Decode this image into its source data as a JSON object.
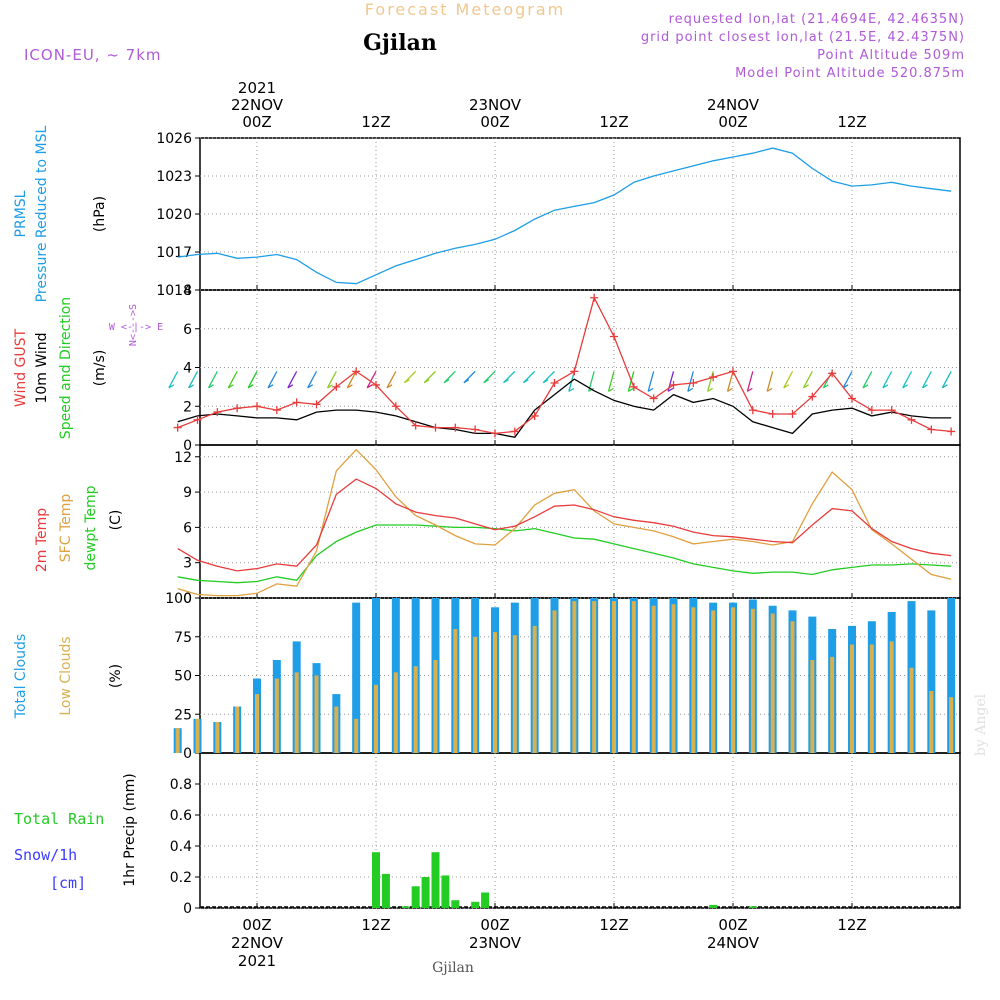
{
  "header": {
    "product": "Forecast Meteogram",
    "location": "Gjilan",
    "model": "ICON-EU, ~ 7km",
    "requested": "requested lon,lat (21.4694E, 42.4635N)",
    "grid_point": "grid point closest lon,lat (21.5E, 42.4375N)",
    "point_alt": "Point Altitude 509m",
    "model_alt": "Model Point Altitude 520.875m"
  },
  "footer_name": "Gjilan",
  "watermark": "by Angel",
  "top_axis": {
    "year": "2021",
    "dates": [
      "22NOV",
      "23NOV",
      "24NOV"
    ],
    "hours": [
      "00Z",
      "12Z",
      "00Z",
      "12Z",
      "00Z",
      "12Z"
    ]
  },
  "bottom_axis": {
    "year": "2021",
    "dates": [
      "22NOV",
      "23NOV",
      "24NOV"
    ],
    "hours": [
      "00Z",
      "12Z",
      "00Z",
      "12Z",
      "00Z",
      "12Z"
    ]
  },
  "panel_labels": {
    "pressure": {
      "l1": "PRMSL",
      "l2": "Pressure Reduced to MSL",
      "unit": "(hPa)"
    },
    "wind": {
      "gust": "Wind GUST",
      "wind10": "10m Wind",
      "dir": "Speed and Direction",
      "unit": "(m/s)",
      "compass_ns": "N<--->S",
      "compass_we": "W <-|-> E"
    },
    "temp": {
      "t2m": "2m Temp",
      "sfc": "SFC Temp",
      "dew": "dewpt Temp",
      "unit": "(C)"
    },
    "clouds": {
      "total": "Total Clouds",
      "low": "Low Clouds",
      "unit": "(%)"
    },
    "precip": {
      "rain": "Total   Rain",
      "snow": "Snow/1h",
      "snow_unit": "[cm]",
      "unit": "1hr Precip (mm)"
    }
  },
  "colors": {
    "pressure": "#1e9ee6",
    "gust": "#e83c3c",
    "wind": "#000000",
    "temp": "#e83c3c",
    "sfc": "#e0a040",
    "dew": "#22cc22",
    "total_cloud": "#1e9ee6",
    "low_cloud": "#d8b050",
    "rain": "#22cc22",
    "snow": "#3b3bff",
    "purple": "#b05ad8"
  },
  "chart_data": [
    {
      "type": "line",
      "title": "PRMSL Pressure Reduced to MSL",
      "ylabel": "(hPa)",
      "ylim": [
        1014,
        1026
      ],
      "yticks": [
        1014,
        1017,
        1020,
        1023,
        1026
      ],
      "x_hours": [
        -8,
        -6,
        -4,
        -2,
        0,
        2,
        4,
        6,
        8,
        10,
        12,
        14,
        16,
        18,
        20,
        22,
        24,
        26,
        28,
        30,
        32,
        34,
        36,
        38,
        40,
        42,
        44,
        46,
        48,
        50,
        52,
        54,
        56,
        58,
        60,
        62,
        64,
        66,
        68,
        70
      ],
      "series": [
        {
          "name": "PRMSL",
          "values": [
            1016.6,
            1016.8,
            1016.9,
            1016.5,
            1016.6,
            1016.8,
            1016.4,
            1015.4,
            1014.6,
            1014.5,
            1015.2,
            1015.9,
            1016.4,
            1016.9,
            1017.3,
            1017.6,
            1018.0,
            1018.7,
            1019.6,
            1020.3,
            1020.6,
            1020.9,
            1021.5,
            1022.5,
            1023.0,
            1023.4,
            1023.8,
            1024.2,
            1024.5,
            1024.8,
            1025.2,
            1024.8,
            1023.6,
            1022.6,
            1022.2,
            1022.3,
            1022.5,
            1022.2,
            1022.0,
            1021.8
          ]
        }
      ]
    },
    {
      "type": "line",
      "title": "Wind GUST / 10m Wind Speed and Direction",
      "ylabel": "(m/s)",
      "ylim": [
        0,
        8
      ],
      "yticks": [
        0,
        2,
        4,
        6,
        8
      ],
      "x_hours": [
        -8,
        -6,
        -4,
        -2,
        0,
        2,
        4,
        6,
        8,
        10,
        12,
        14,
        16,
        18,
        20,
        22,
        24,
        26,
        28,
        30,
        32,
        34,
        36,
        38,
        40,
        42,
        44,
        46,
        48,
        50,
        52,
        54,
        56,
        58,
        60,
        62,
        64,
        66,
        68,
        70
      ],
      "series": [
        {
          "name": "Wind GUST",
          "values": [
            0.9,
            1.3,
            1.7,
            1.9,
            2.0,
            1.8,
            2.2,
            2.1,
            3.0,
            3.8,
            3.1,
            2.0,
            1.0,
            0.9,
            0.9,
            0.8,
            0.6,
            0.7,
            1.5,
            3.2,
            3.8,
            7.6,
            5.6,
            3.0,
            2.4,
            3.1,
            3.2,
            3.5,
            3.8,
            1.8,
            1.6,
            1.6,
            2.5,
            3.7,
            2.4,
            1.8,
            1.8,
            1.3,
            0.8,
            0.7
          ]
        },
        {
          "name": "10m Wind",
          "values": [
            1.2,
            1.5,
            1.6,
            1.5,
            1.4,
            1.4,
            1.3,
            1.7,
            1.8,
            1.8,
            1.7,
            1.5,
            1.2,
            0.9,
            0.8,
            0.6,
            0.6,
            0.4,
            1.8,
            2.6,
            3.4,
            2.8,
            2.3,
            2.0,
            1.8,
            2.6,
            2.2,
            2.4,
            2.0,
            1.2,
            0.9,
            0.6,
            1.6,
            1.8,
            1.9,
            1.5,
            1.7,
            1.5,
            1.4,
            1.4
          ]
        }
      ]
    },
    {
      "type": "line",
      "title": "2m Temp / SFC Temp / dewpt Temp",
      "ylabel": "(C)",
      "ylim": [
        0,
        13
      ],
      "yticks": [
        0,
        3,
        6,
        9,
        12
      ],
      "x_hours": [
        -8,
        -6,
        -4,
        -2,
        0,
        2,
        4,
        6,
        8,
        10,
        12,
        14,
        16,
        18,
        20,
        22,
        24,
        26,
        28,
        30,
        32,
        34,
        36,
        38,
        40,
        42,
        44,
        46,
        48,
        50,
        52,
        54,
        56,
        58,
        60,
        62,
        64,
        66,
        68,
        70
      ],
      "series": [
        {
          "name": "2m Temp",
          "values": [
            4.2,
            3.2,
            2.7,
            2.3,
            2.5,
            2.9,
            2.7,
            4.5,
            8.8,
            10.1,
            9.3,
            8.0,
            7.3,
            7.0,
            6.8,
            6.3,
            5.8,
            6.1,
            6.9,
            7.8,
            7.9,
            7.5,
            6.9,
            6.6,
            6.4,
            6.1,
            5.6,
            5.3,
            5.2,
            5.0,
            4.8,
            4.7,
            6.2,
            7.6,
            7.4,
            5.9,
            4.8,
            4.2,
            3.8,
            3.6
          ]
        },
        {
          "name": "SFC Temp",
          "values": [
            0.8,
            0.3,
            0.2,
            0.2,
            0.4,
            1.2,
            1.0,
            4.0,
            10.8,
            12.6,
            10.9,
            8.6,
            7.0,
            6.2,
            5.3,
            4.6,
            4.5,
            5.9,
            7.9,
            8.9,
            9.2,
            7.4,
            6.3,
            6.0,
            5.7,
            5.2,
            4.6,
            4.8,
            5.0,
            4.8,
            4.5,
            4.8,
            8.0,
            10.7,
            9.2,
            5.8,
            4.6,
            3.3,
            2.0,
            1.6
          ]
        },
        {
          "name": "dewpt Temp",
          "values": [
            1.8,
            1.5,
            1.4,
            1.3,
            1.4,
            1.8,
            1.5,
            3.6,
            4.8,
            5.6,
            6.2,
            6.2,
            6.2,
            6.1,
            6.0,
            6.0,
            5.9,
            5.7,
            5.9,
            5.5,
            5.1,
            5.0,
            4.6,
            4.2,
            3.8,
            3.4,
            2.9,
            2.6,
            2.3,
            2.1,
            2.2,
            2.2,
            2.0,
            2.4,
            2.6,
            2.8,
            2.8,
            2.9,
            2.8,
            2.7
          ]
        }
      ]
    },
    {
      "type": "bar",
      "title": "Total Clouds / Low Clouds",
      "ylabel": "(%)",
      "ylim": [
        0,
        100
      ],
      "yticks": [
        0,
        25,
        50,
        75,
        100
      ],
      "x_hours": [
        -8,
        -6,
        -4,
        -2,
        0,
        2,
        4,
        6,
        8,
        10,
        12,
        14,
        16,
        18,
        20,
        22,
        24,
        26,
        28,
        30,
        32,
        34,
        36,
        38,
        40,
        42,
        44,
        46,
        48,
        50,
        52,
        54,
        56,
        58,
        60,
        62,
        64,
        66,
        68,
        70
      ],
      "series": [
        {
          "name": "Total Clouds",
          "values": [
            16,
            22,
            20,
            30,
            48,
            60,
            72,
            58,
            38,
            97,
            100,
            100,
            100,
            100,
            100,
            100,
            94,
            97,
            100,
            100,
            100,
            100,
            100,
            100,
            100,
            100,
            100,
            97,
            97,
            99,
            95,
            92,
            88,
            80,
            82,
            85,
            91,
            98,
            92,
            100
          ]
        },
        {
          "name": "Low Clouds",
          "values": [
            16,
            22,
            20,
            30,
            38,
            48,
            52,
            50,
            30,
            22,
            44,
            52,
            56,
            60,
            80,
            75,
            78,
            76,
            82,
            92,
            98,
            98,
            98,
            98,
            95,
            96,
            94,
            92,
            94,
            93,
            90,
            85,
            60,
            62,
            70,
            70,
            72,
            55,
            40,
            36
          ]
        }
      ]
    },
    {
      "type": "bar",
      "title": "1hr Precip",
      "ylabel": "1hr Precip (mm)",
      "ylim": [
        0,
        1
      ],
      "yticks": [
        0,
        0.2,
        0.4,
        0.6,
        0.8
      ],
      "x_hours": [
        12,
        13,
        15,
        16,
        17,
        18,
        19,
        20,
        22,
        23,
        46,
        50
      ],
      "series": [
        {
          "name": "Total Rain",
          "values": [
            0.36,
            0.22,
            0.01,
            0.14,
            0.2,
            0.36,
            0.21,
            0.05,
            0.04,
            0.1,
            0.02,
            0.01
          ]
        }
      ]
    }
  ]
}
